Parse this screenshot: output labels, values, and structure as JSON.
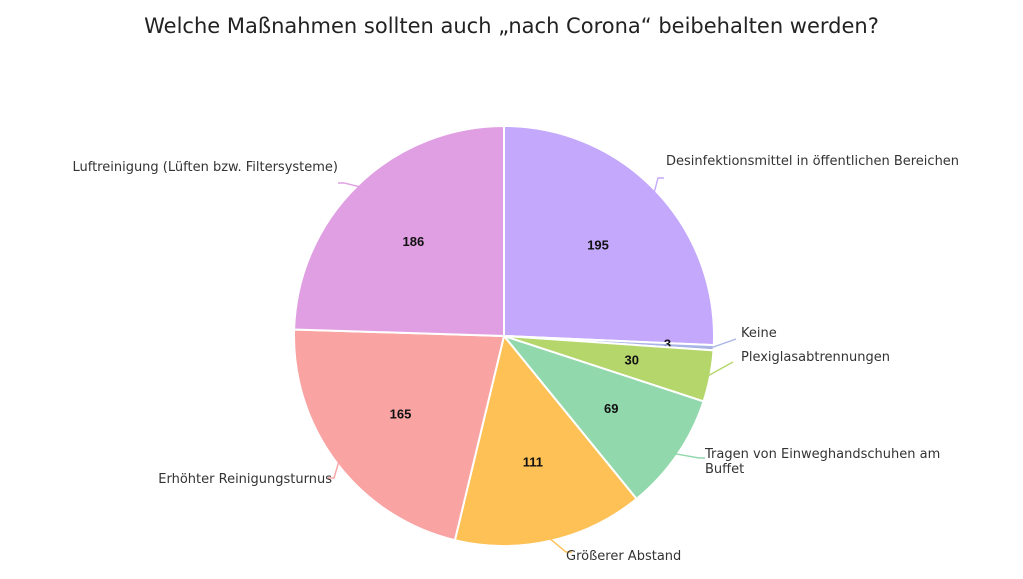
{
  "chart_data": {
    "type": "pie",
    "title": "Welche Maßnahmen sollten auch „nach Corona“ beibehalten werden?",
    "slices": [
      {
        "label": "Desinfektionsmittel in öffentlichen Bereichen",
        "value": 195,
        "color": "#c4a8fb"
      },
      {
        "label": "Keine",
        "value": 3,
        "color": "#a9b4e6"
      },
      {
        "label": "Plexiglasabtrennungen",
        "value": 30,
        "color": "#b4d66a"
      },
      {
        "label": "Tragen von Einweghandschuhen am Buffet",
        "value": 69,
        "color": "#92d8ad"
      },
      {
        "label": "Größerer Abstand",
        "value": 111,
        "color": "#fdc155"
      },
      {
        "label": "Erhöhter Reinigungsturnus",
        "value": 165,
        "color": "#f9a3a3"
      },
      {
        "label": "Luftreinigung (Lüften bzw. Filtersysteme)",
        "value": 186,
        "color": "#e09fe3"
      }
    ]
  }
}
